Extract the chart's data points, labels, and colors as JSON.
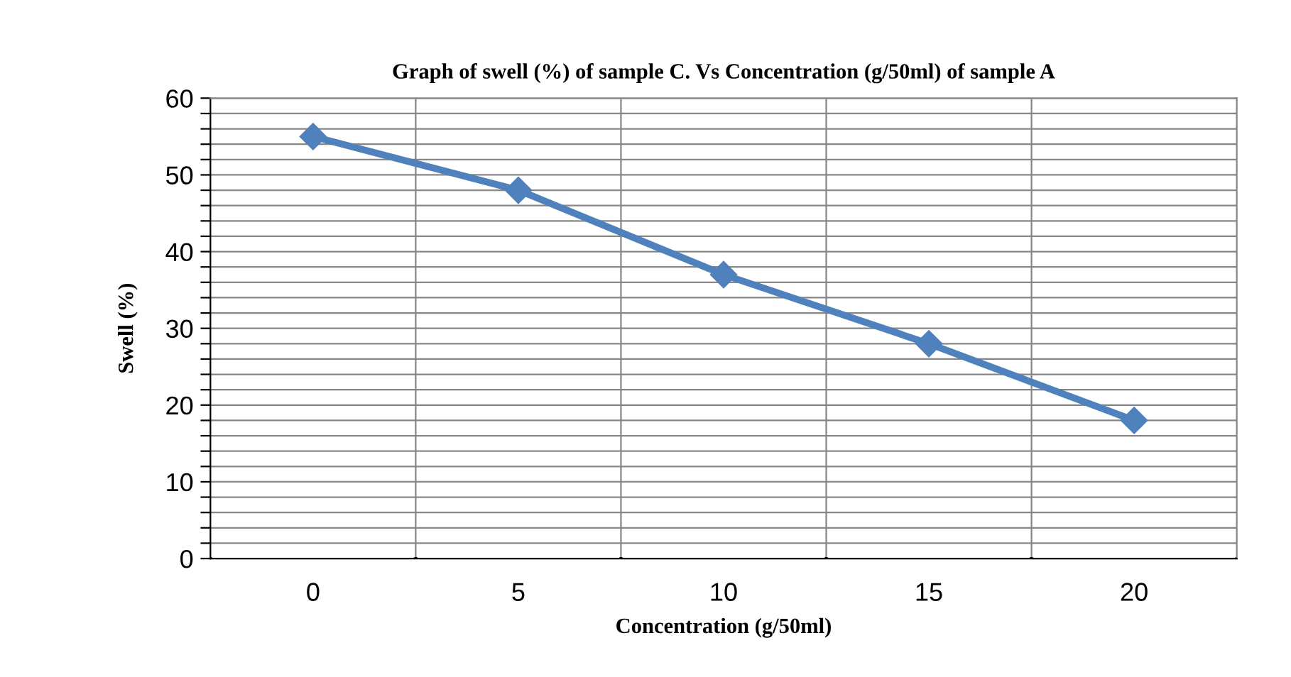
{
  "chart_data": {
    "type": "line",
    "title": "Graph of swell (%) of sample C. Vs Concentration (g/50ml) of sample A",
    "xlabel": "Concentration (g/50ml)",
    "ylabel": "Swell (%)",
    "categories": [
      "0",
      "5",
      "10",
      "15",
      "20"
    ],
    "series": [
      {
        "color": "#4f81bd",
        "values": [
          55,
          48,
          37,
          28,
          18
        ]
      }
    ],
    "ylim": [
      0,
      60
    ],
    "yticks": [
      0,
      {
        "value": 2,
        "label": null
      },
      {
        "value": 4,
        "label": null
      },
      {
        "value": 6,
        "label": null
      },
      {
        "value": 8,
        "label": null
      },
      10,
      {
        "value": 12,
        "label": null
      },
      {
        "value": 14,
        "label": null
      },
      {
        "value": 16,
        "label": null
      },
      {
        "value": 18,
        "label": null
      },
      20,
      {
        "value": 22,
        "label": null
      },
      {
        "value": 24,
        "label": null
      },
      {
        "value": 26,
        "label": null
      },
      {
        "value": 28,
        "label": null
      },
      30,
      {
        "value": 32,
        "label": null
      },
      {
        "value": 34,
        "label": null
      },
      {
        "value": 36,
        "label": null
      },
      {
        "value": 38,
        "label": null
      },
      40,
      {
        "value": 42,
        "label": null
      },
      {
        "value": 44,
        "label": null
      },
      {
        "value": 46,
        "label": null
      },
      {
        "value": 48,
        "label": null
      },
      50,
      {
        "value": 52,
        "label": null
      },
      {
        "value": 54,
        "label": null
      },
      {
        "value": 56,
        "label": null
      },
      {
        "value": 58,
        "label": null
      },
      60
    ],
    "grid": true,
    "marker": "diamond",
    "line_style": "solid",
    "legend": false
  }
}
